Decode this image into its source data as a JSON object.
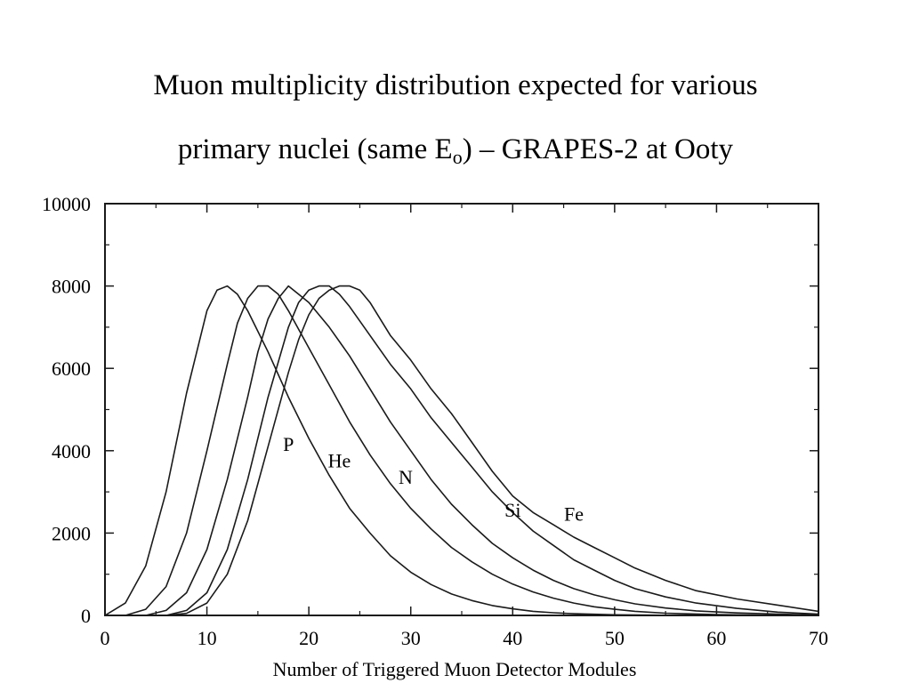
{
  "title": {
    "line1": "Muon multiplicity distribution expected for various",
    "line2_pre": "primary nuclei (same E",
    "line2_sub": "o",
    "line2_post": ") – GRAPES-2 at Ooty"
  },
  "chart_data": {
    "type": "line",
    "xlabel": "Number of Triggered Muon Detector Modules",
    "ylabel": "",
    "xlim": [
      0,
      70
    ],
    "ylim": [
      0,
      10000
    ],
    "x_ticks": [
      0,
      10,
      20,
      30,
      40,
      50,
      60,
      70
    ],
    "y_ticks": [
      0,
      2000,
      4000,
      6000,
      8000,
      10000
    ],
    "grid": false,
    "legend": "none",
    "line_color": "#1a1a1a",
    "series": [
      {
        "name": "P",
        "points": [
          [
            0,
            0
          ],
          [
            2,
            300
          ],
          [
            4,
            1200
          ],
          [
            6,
            3000
          ],
          [
            8,
            5400
          ],
          [
            10,
            7400
          ],
          [
            11,
            7900
          ],
          [
            12,
            8000
          ],
          [
            13,
            7800
          ],
          [
            14,
            7400
          ],
          [
            16,
            6400
          ],
          [
            18,
            5300
          ],
          [
            20,
            4300
          ],
          [
            22,
            3400
          ],
          [
            24,
            2600
          ],
          [
            26,
            2000
          ],
          [
            28,
            1450
          ],
          [
            30,
            1050
          ],
          [
            32,
            750
          ],
          [
            34,
            520
          ],
          [
            36,
            360
          ],
          [
            38,
            240
          ],
          [
            40,
            160
          ],
          [
            42,
            100
          ],
          [
            44,
            65
          ],
          [
            46,
            40
          ],
          [
            50,
            15
          ],
          [
            55,
            5
          ],
          [
            60,
            0
          ]
        ]
      },
      {
        "name": "He",
        "points": [
          [
            2,
            0
          ],
          [
            4,
            150
          ],
          [
            6,
            700
          ],
          [
            8,
            2000
          ],
          [
            10,
            4000
          ],
          [
            12,
            6100
          ],
          [
            13,
            7100
          ],
          [
            14,
            7700
          ],
          [
            15,
            8000
          ],
          [
            16,
            8000
          ],
          [
            17,
            7800
          ],
          [
            18,
            7400
          ],
          [
            20,
            6500
          ],
          [
            22,
            5600
          ],
          [
            24,
            4700
          ],
          [
            26,
            3900
          ],
          [
            28,
            3200
          ],
          [
            30,
            2600
          ],
          [
            32,
            2100
          ],
          [
            34,
            1650
          ],
          [
            36,
            1300
          ],
          [
            38,
            1000
          ],
          [
            40,
            760
          ],
          [
            42,
            570
          ],
          [
            44,
            420
          ],
          [
            46,
            300
          ],
          [
            48,
            210
          ],
          [
            50,
            150
          ],
          [
            52,
            100
          ],
          [
            55,
            55
          ],
          [
            60,
            20
          ],
          [
            65,
            5
          ],
          [
            70,
            0
          ]
        ]
      },
      {
        "name": "N",
        "points": [
          [
            4,
            0
          ],
          [
            6,
            120
          ],
          [
            8,
            550
          ],
          [
            10,
            1600
          ],
          [
            12,
            3300
          ],
          [
            14,
            5300
          ],
          [
            15,
            6400
          ],
          [
            16,
            7200
          ],
          [
            17,
            7700
          ],
          [
            18,
            8000
          ],
          [
            19,
            7800
          ],
          [
            20,
            7600
          ],
          [
            22,
            7000
          ],
          [
            24,
            6300
          ],
          [
            26,
            5500
          ],
          [
            28,
            4700
          ],
          [
            30,
            4000
          ],
          [
            32,
            3300
          ],
          [
            34,
            2700
          ],
          [
            36,
            2200
          ],
          [
            38,
            1750
          ],
          [
            40,
            1400
          ],
          [
            42,
            1100
          ],
          [
            44,
            850
          ],
          [
            46,
            650
          ],
          [
            48,
            500
          ],
          [
            50,
            380
          ],
          [
            52,
            280
          ],
          [
            55,
            180
          ],
          [
            58,
            110
          ],
          [
            62,
            60
          ],
          [
            66,
            30
          ],
          [
            70,
            10
          ]
        ]
      },
      {
        "name": "Si",
        "points": [
          [
            6,
            0
          ],
          [
            8,
            120
          ],
          [
            10,
            550
          ],
          [
            12,
            1600
          ],
          [
            14,
            3300
          ],
          [
            16,
            5300
          ],
          [
            18,
            7000
          ],
          [
            19,
            7600
          ],
          [
            20,
            7900
          ],
          [
            21,
            8000
          ],
          [
            22,
            8000
          ],
          [
            23,
            7800
          ],
          [
            24,
            7500
          ],
          [
            26,
            6800
          ],
          [
            28,
            6100
          ],
          [
            30,
            5500
          ],
          [
            32,
            4800
          ],
          [
            34,
            4200
          ],
          [
            36,
            3600
          ],
          [
            38,
            3000
          ],
          [
            40,
            2500
          ],
          [
            42,
            2050
          ],
          [
            44,
            1700
          ],
          [
            46,
            1350
          ],
          [
            48,
            1100
          ],
          [
            50,
            850
          ],
          [
            52,
            650
          ],
          [
            55,
            450
          ],
          [
            58,
            300
          ],
          [
            62,
            170
          ],
          [
            66,
            80
          ],
          [
            70,
            30
          ]
        ]
      },
      {
        "name": "Fe",
        "points": [
          [
            6,
            0
          ],
          [
            8,
            50
          ],
          [
            10,
            300
          ],
          [
            12,
            1000
          ],
          [
            14,
            2300
          ],
          [
            16,
            4100
          ],
          [
            18,
            5900
          ],
          [
            19,
            6700
          ],
          [
            20,
            7300
          ],
          [
            21,
            7700
          ],
          [
            22,
            7900
          ],
          [
            23,
            8000
          ],
          [
            24,
            8000
          ],
          [
            25,
            7900
          ],
          [
            26,
            7600
          ],
          [
            28,
            6800
          ],
          [
            30,
            6200
          ],
          [
            32,
            5500
          ],
          [
            34,
            4900
          ],
          [
            36,
            4200
          ],
          [
            38,
            3500
          ],
          [
            40,
            2900
          ],
          [
            42,
            2500
          ],
          [
            44,
            2200
          ],
          [
            46,
            1900
          ],
          [
            48,
            1650
          ],
          [
            50,
            1400
          ],
          [
            52,
            1150
          ],
          [
            55,
            850
          ],
          [
            58,
            600
          ],
          [
            62,
            400
          ],
          [
            66,
            250
          ],
          [
            70,
            100
          ]
        ]
      }
    ],
    "annotations": [
      {
        "text": "P",
        "x": 18,
        "y": 4000
      },
      {
        "text": "He",
        "x": 23,
        "y": 3600
      },
      {
        "text": "N",
        "x": 29.5,
        "y": 3200
      },
      {
        "text": "Si",
        "x": 40,
        "y": 2400
      },
      {
        "text": "Fe",
        "x": 46,
        "y": 2300
      }
    ]
  }
}
